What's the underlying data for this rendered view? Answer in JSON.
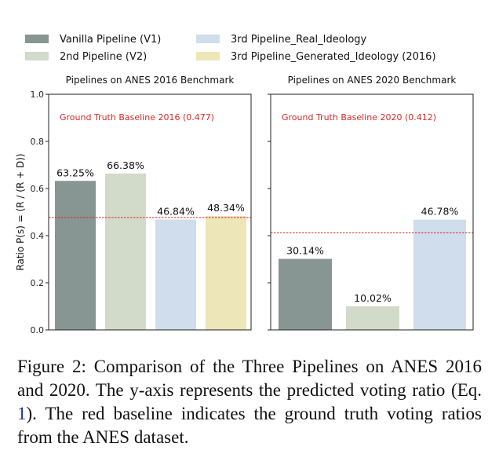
{
  "chart_data": [
    {
      "type": "bar",
      "title": "Pipelines on ANES 2016 Benchmark",
      "ylabel": "Ratio P(s) = (R / (R + D))",
      "ylim": [
        0,
        1
      ],
      "yticks": [
        "0.0",
        "0.2",
        "0.4",
        "0.6",
        "0.8",
        "1.0"
      ],
      "categories": [
        "Vanilla Pipeline (V1)",
        "2nd Pipeline (V2)",
        "3rd Pipeline_Real_Ideology",
        "3rd Pipeline_Generated_Ideology (2016)"
      ],
      "values": [
        0.6325,
        0.6638,
        0.4684,
        0.4834
      ],
      "value_labels": [
        "63.25%",
        "66.38%",
        "46.84%",
        "48.34%"
      ],
      "colors": [
        "#889693",
        "#d2dbca",
        "#cfddec",
        "#ece6b8"
      ],
      "baseline": {
        "value": 0.477,
        "label": "Ground Truth Baseline 2016 (0.477)",
        "color": "#d62728"
      },
      "grid": false
    },
    {
      "type": "bar",
      "title": "Pipelines on ANES 2020 Benchmark",
      "ylim": [
        0,
        1
      ],
      "categories": [
        "Vanilla Pipeline (V1)",
        "2nd Pipeline (V2)",
        "3rd Pipeline_Real_Ideology"
      ],
      "values": [
        0.3014,
        0.1002,
        0.4678
      ],
      "value_labels": [
        "30.14%",
        "10.02%",
        "46.78%"
      ],
      "colors": [
        "#889693",
        "#d2dbca",
        "#cfddec"
      ],
      "baseline": {
        "value": 0.412,
        "label": "Ground Truth Baseline 2020 (0.412)",
        "color": "#d62728"
      },
      "grid": false
    }
  ],
  "legend": {
    "placement": "top",
    "entries": [
      {
        "label": "Vanilla Pipeline (V1)",
        "color": "#889693"
      },
      {
        "label": "2nd Pipeline (V2)",
        "color": "#d2dbca"
      },
      {
        "label": "3rd Pipeline_Real_Ideology",
        "color": "#cfddec"
      },
      {
        "label": "3rd Pipeline_Generated_Ideology (2016)",
        "color": "#ece6b8"
      }
    ]
  },
  "caption": {
    "prefix": "Figure 2: Comparison of the Three Pipelines on ANES 2016 and 2020.  The y-axis represents the predicted voting ratio (Eq. ",
    "ref": "1",
    "suffix": ").  The red baseline indicates the ground truth voting ratios from the ANES dataset."
  }
}
